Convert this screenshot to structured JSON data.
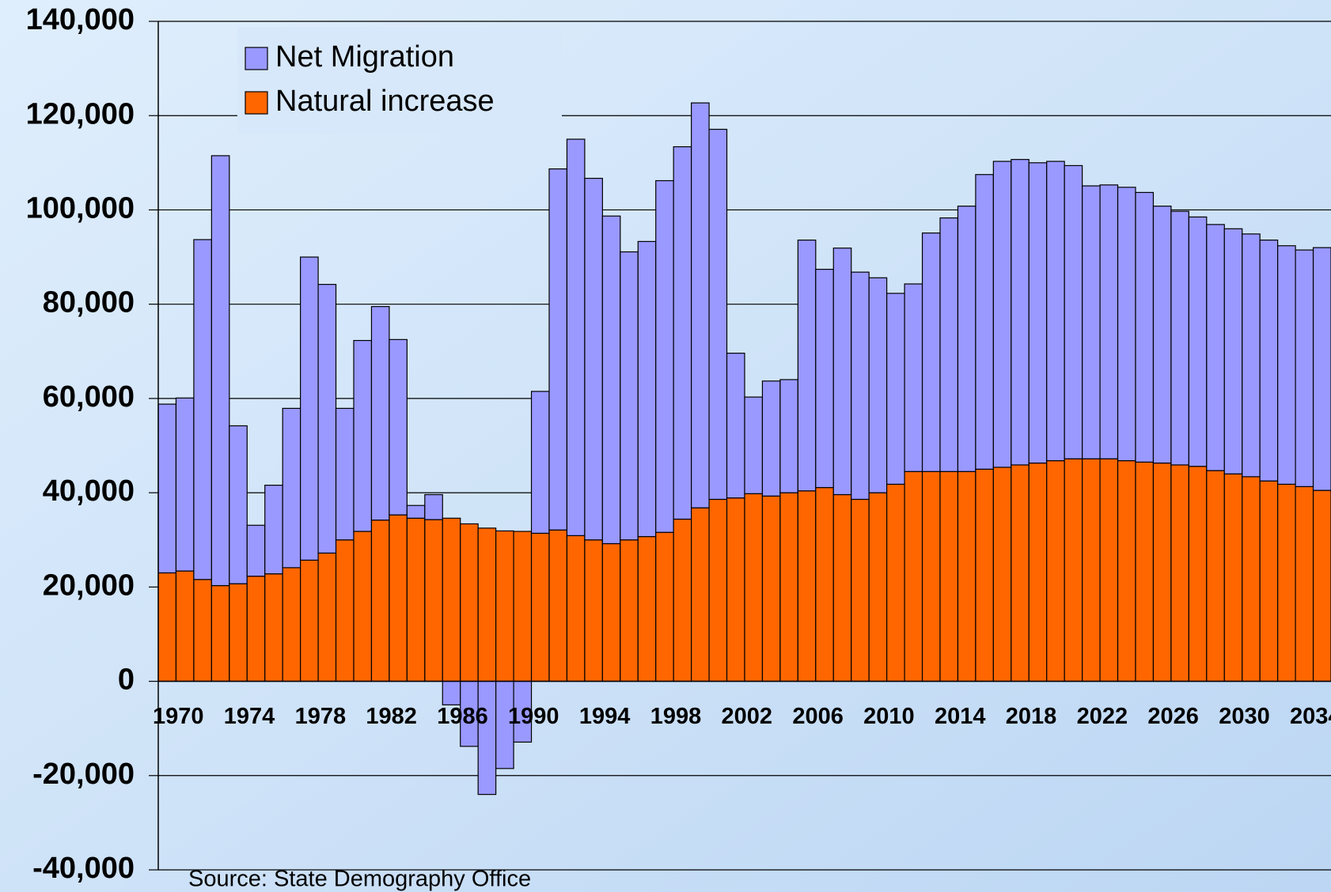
{
  "chart_data": {
    "type": "stacked_bar",
    "categories": [
      "1970",
      null,
      null,
      null,
      "1974",
      null,
      null,
      null,
      "1978",
      null,
      null,
      null,
      "1982",
      null,
      null,
      null,
      "1986",
      null,
      null,
      null,
      "1990",
      null,
      null,
      null,
      "1994",
      null,
      null,
      null,
      "1998",
      null,
      null,
      null,
      "2002",
      null,
      null,
      null,
      "2006",
      null,
      null,
      null,
      "2010",
      null,
      null,
      null,
      "2014",
      null,
      null,
      null,
      "2018",
      null,
      null,
      null,
      "2022",
      null,
      null,
      null,
      "2026",
      null,
      null,
      null,
      "2030",
      null,
      null,
      null,
      "2034",
      null
    ],
    "series": [
      {
        "name": "Net Migration",
        "color": "#9999ff",
        "values": [
          35800,
          36700,
          72100,
          91200,
          33500,
          10800,
          18800,
          33800,
          64300,
          57000,
          27900,
          40500,
          45300,
          37200,
          2700,
          5300,
          -5000,
          -13800,
          -24000,
          -18500,
          -12900,
          30100,
          76600,
          84100,
          76700,
          69500,
          61100,
          62600,
          74600,
          79000,
          85900,
          78500,
          30700,
          20500,
          24400,
          24000,
          53200,
          46300,
          52300,
          48200,
          45600,
          40500,
          39800,
          50600,
          53800,
          56300,
          62500,
          64900,
          64800,
          63700,
          63500,
          62200,
          57900,
          58100,
          58000,
          57200,
          54500,
          53800,
          52900,
          52200,
          52000,
          51500,
          51100,
          50600,
          50200,
          51500
        ]
      },
      {
        "name": "Natural increase",
        "color": "#ff6600",
        "values": [
          23000,
          23400,
          21600,
          20300,
          20700,
          22300,
          22800,
          24100,
          25700,
          27200,
          30000,
          31800,
          34200,
          35300,
          34600,
          34300,
          34600,
          33400,
          32500,
          31900,
          31800,
          31400,
          32100,
          30900,
          30000,
          29200,
          30000,
          30700,
          31600,
          34400,
          36800,
          38600,
          38900,
          39800,
          39300,
          40000,
          40400,
          41100,
          39600,
          38600,
          40000,
          41800,
          44500,
          44500,
          44500,
          44500,
          45000,
          45400,
          45900,
          46300,
          46800,
          47200,
          47200,
          47200,
          46800,
          46500,
          46300,
          45900,
          45600,
          44700,
          44000,
          43400,
          42500,
          41800,
          41300,
          40500
        ]
      }
    ],
    "ylim": [
      -40000,
      140000
    ],
    "yticks": [
      {
        "value": -40000,
        "label": "-40,000"
      },
      {
        "value": -20000,
        "label": "-20,000"
      },
      0,
      {
        "value": 20000,
        "label": "20,000"
      },
      {
        "value": 40000,
        "label": "40,000"
      },
      {
        "value": 60000,
        "label": "60,000"
      },
      {
        "value": 80000,
        "label": "80,000"
      },
      {
        "value": 100000,
        "label": "100,000"
      },
      {
        "value": 120000,
        "label": "120,000"
      },
      {
        "value": 140000,
        "label": "140,000"
      }
    ],
    "grid": true,
    "legend": "top-left",
    "source": "Source: State Demography Office"
  }
}
